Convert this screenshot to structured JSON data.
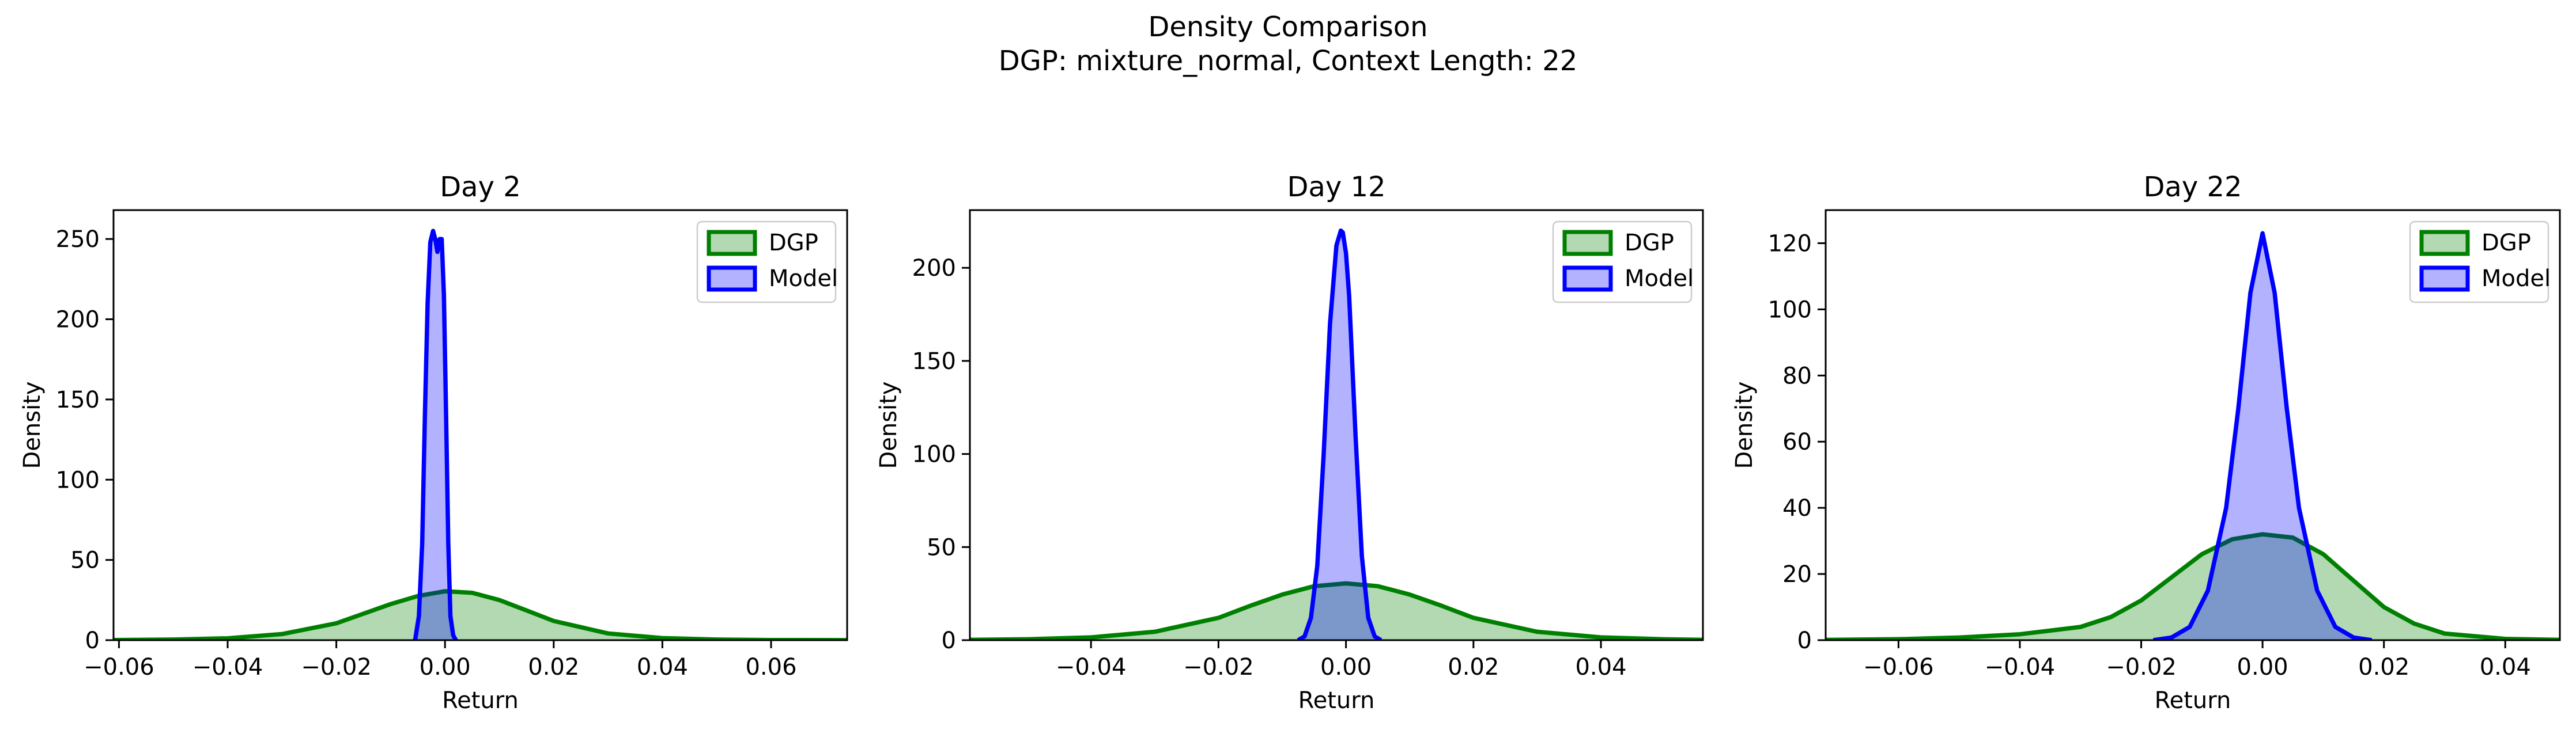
{
  "figure": {
    "title_line1": "Density Comparison",
    "title_line2": "DGP: mixture_normal, Context Length: 22"
  },
  "colors": {
    "dgp_line": "#008000",
    "dgp_fill": "#008000",
    "model_line": "#0000ff",
    "model_fill": "#0000ff"
  },
  "chart_data": [
    {
      "type": "area",
      "title": "Day 2",
      "xlabel": "Return",
      "ylabel": "Density",
      "xlim": [
        -0.061,
        0.074
      ],
      "ylim": [
        0,
        268
      ],
      "xticks": [
        -0.06,
        -0.04,
        -0.02,
        0.0,
        0.02,
        0.04,
        0.06
      ],
      "xtick_labels": [
        "−0.06",
        "−0.04",
        "−0.02",
        "0.00",
        "0.02",
        "0.04",
        "0.06"
      ],
      "yticks": [
        0,
        50,
        100,
        150,
        200,
        250
      ],
      "ytick_labels": [
        "0",
        "50",
        "100",
        "150",
        "200",
        "250"
      ],
      "legend": "top-right",
      "series": [
        {
          "name": "DGP",
          "x": [
            -0.061,
            -0.05,
            -0.04,
            -0.03,
            -0.02,
            -0.015,
            -0.01,
            -0.005,
            0.0,
            0.005,
            0.01,
            0.015,
            0.02,
            0.03,
            0.04,
            0.05,
            0.06,
            0.074
          ],
          "values": [
            0.1,
            0.4,
            1.2,
            3.8,
            10.5,
            16.5,
            22.5,
            27.5,
            30.5,
            29.5,
            25,
            18.5,
            12,
            4.2,
            1.3,
            0.4,
            0.1,
            0.03
          ]
        },
        {
          "name": "Model",
          "x": [
            -0.0055,
            -0.0048,
            -0.0042,
            -0.0037,
            -0.0032,
            -0.0027,
            -0.0022,
            -0.0018,
            -0.0014,
            -0.001,
            -0.0006,
            -0.0002,
            0.0002,
            0.0006,
            0.001,
            0.0015,
            0.002
          ],
          "values": [
            0,
            15,
            60,
            140,
            210,
            248,
            255,
            250,
            242,
            250,
            250,
            215,
            140,
            60,
            15,
            3,
            0
          ]
        }
      ]
    },
    {
      "type": "area",
      "title": "Day 12",
      "xlabel": "Return",
      "ylabel": "Density",
      "xlim": [
        -0.059,
        0.056
      ],
      "ylim": [
        0,
        231
      ],
      "xticks": [
        -0.04,
        -0.02,
        0.0,
        0.02,
        0.04
      ],
      "xtick_labels": [
        "−0.04",
        "−0.02",
        "0.00",
        "0.02",
        "0.04"
      ],
      "yticks": [
        0,
        50,
        100,
        150,
        200
      ],
      "ytick_labels": [
        "0",
        "50",
        "100",
        "150",
        "200"
      ],
      "legend": "top-right",
      "series": [
        {
          "name": "DGP",
          "x": [
            -0.059,
            -0.05,
            -0.04,
            -0.03,
            -0.02,
            -0.015,
            -0.01,
            -0.005,
            0.0,
            0.005,
            0.01,
            0.015,
            0.02,
            0.03,
            0.04,
            0.05,
            0.056
          ],
          "values": [
            0.2,
            0.5,
            1.5,
            4.5,
            12,
            18.5,
            24.5,
            29,
            30.5,
            29,
            24.5,
            18.5,
            12,
            4.5,
            1.5,
            0.5,
            0.2
          ]
        },
        {
          "name": "Model",
          "x": [
            -0.0075,
            -0.0065,
            -0.0055,
            -0.0045,
            -0.0035,
            -0.0025,
            -0.0015,
            -0.0008,
            -0.0005,
            0.0,
            0.0005,
            0.0015,
            0.0025,
            0.0035,
            0.0045,
            0.0055
          ],
          "values": [
            0,
            2,
            12,
            40,
            100,
            170,
            212,
            220,
            219,
            208,
            185,
            110,
            45,
            12,
            2,
            0
          ]
        }
      ]
    },
    {
      "type": "area",
      "title": "Day 22",
      "xlabel": "Return",
      "ylabel": "Density",
      "xlim": [
        -0.072,
        0.049
      ],
      "ylim": [
        0,
        130
      ],
      "xticks": [
        -0.06,
        -0.04,
        -0.02,
        0.0,
        0.02,
        0.04
      ],
      "xtick_labels": [
        "−0.06",
        "−0.04",
        "−0.02",
        "0.00",
        "0.02",
        "0.04"
      ],
      "yticks": [
        0,
        20,
        40,
        60,
        80,
        100,
        120
      ],
      "ytick_labels": [
        "0",
        "20",
        "40",
        "60",
        "80",
        "100",
        "120"
      ],
      "legend": "top-right",
      "series": [
        {
          "name": "DGP",
          "x": [
            -0.072,
            -0.06,
            -0.05,
            -0.04,
            -0.03,
            -0.025,
            -0.02,
            -0.015,
            -0.01,
            -0.005,
            0.0,
            0.005,
            0.01,
            0.015,
            0.02,
            0.025,
            0.03,
            0.04,
            0.049
          ],
          "values": [
            0.1,
            0.3,
            0.8,
            1.8,
            4,
            7,
            12,
            19,
            26,
            30.5,
            32,
            31,
            26,
            18,
            10,
            5,
            2,
            0.4,
            0.1
          ]
        },
        {
          "name": "Model",
          "x": [
            -0.018,
            -0.015,
            -0.012,
            -0.009,
            -0.006,
            -0.004,
            -0.002,
            0.0,
            0.002,
            0.004,
            0.006,
            0.009,
            0.012,
            0.015,
            0.018
          ],
          "values": [
            0,
            0.8,
            4,
            15,
            40,
            70,
            105,
            123,
            105,
            70,
            40,
            15,
            4,
            0.8,
            0
          ]
        }
      ]
    }
  ]
}
